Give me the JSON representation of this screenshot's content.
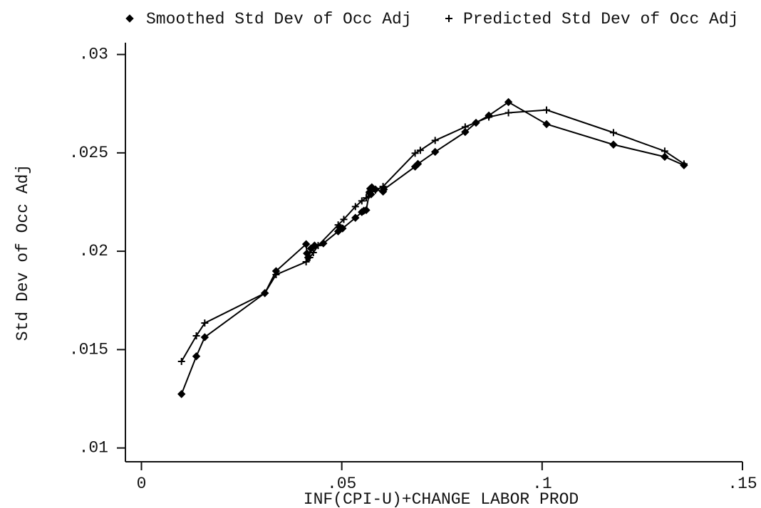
{
  "chart_data": {
    "type": "line",
    "xlabel": "INF(CPI-U)+CHANGE LABOR PROD",
    "ylabel": "Std Dev of Occ Adj",
    "legend": "top",
    "xlim": [
      -0.004,
      0.15
    ],
    "ylim": [
      0.0093,
      0.0306
    ],
    "xticks": [
      0,
      {
        "value": 0.05,
        "label": ".05"
      },
      {
        "value": 0.1,
        "label": ".1"
      },
      {
        "value": 0.15,
        "label": ".15"
      }
    ],
    "yticks": [
      {
        "value": 0.01,
        "label": ".01"
      },
      {
        "value": 0.015,
        "label": ".015"
      },
      {
        "value": 0.02,
        "label": ".02"
      },
      {
        "value": 0.025,
        "label": ".025"
      },
      {
        "value": 0.03,
        "label": ".03"
      }
    ],
    "series": [
      {
        "name": "Smoothed Std Dev of Occ Adj",
        "color": "#000000",
        "marker": "diamond",
        "x": [
          0.01,
          0.0137,
          0.0158,
          0.0308,
          0.0336,
          0.0411,
          0.0413,
          0.0416,
          0.0423,
          0.0432,
          0.0454,
          0.0491,
          0.0496,
          0.0502,
          0.0534,
          0.055,
          0.0555,
          0.0561,
          0.0569,
          0.0571,
          0.0573,
          0.0575,
          0.0584,
          0.0603,
          0.0605,
          0.0683,
          0.069,
          0.0733,
          0.0808,
          0.0835,
          0.0867,
          0.0916,
          0.1011,
          0.1178,
          0.1306,
          0.1354
        ],
        "values": [
          0.01274,
          0.01466,
          0.01563,
          0.01787,
          0.01899,
          0.02036,
          0.01989,
          0.01968,
          0.02014,
          0.02029,
          0.0204,
          0.02101,
          0.02119,
          0.02116,
          0.0217,
          0.02199,
          0.02206,
          0.02209,
          0.023,
          0.02318,
          0.02289,
          0.02325,
          0.02314,
          0.02303,
          0.02314,
          0.0243,
          0.02444,
          0.02505,
          0.02606,
          0.02653,
          0.0269,
          0.02758,
          0.02646,
          0.02542,
          0.0248,
          0.02437
        ]
      },
      {
        "name": "Predicted Std Dev of Occ Adj",
        "color": "#000000",
        "marker": "plus",
        "x": [
          0.01,
          0.0137,
          0.0158,
          0.0308,
          0.0336,
          0.0411,
          0.042,
          0.0429,
          0.0441,
          0.0491,
          0.0505,
          0.0534,
          0.055,
          0.0561,
          0.0569,
          0.0584,
          0.0603,
          0.0683,
          0.0696,
          0.0733,
          0.0808,
          0.0867,
          0.0916,
          0.1011,
          0.1178,
          0.1306,
          0.1354
        ],
        "values": [
          0.0144,
          0.0157,
          0.01635,
          0.01787,
          0.01881,
          0.01946,
          0.01968,
          0.01993,
          0.02029,
          0.02134,
          0.02162,
          0.02227,
          0.02256,
          0.02271,
          0.02292,
          0.0231,
          0.02329,
          0.02498,
          0.02513,
          0.02563,
          0.02632,
          0.02682,
          0.02704,
          0.02718,
          0.02603,
          0.02509,
          0.02444
        ]
      }
    ]
  }
}
